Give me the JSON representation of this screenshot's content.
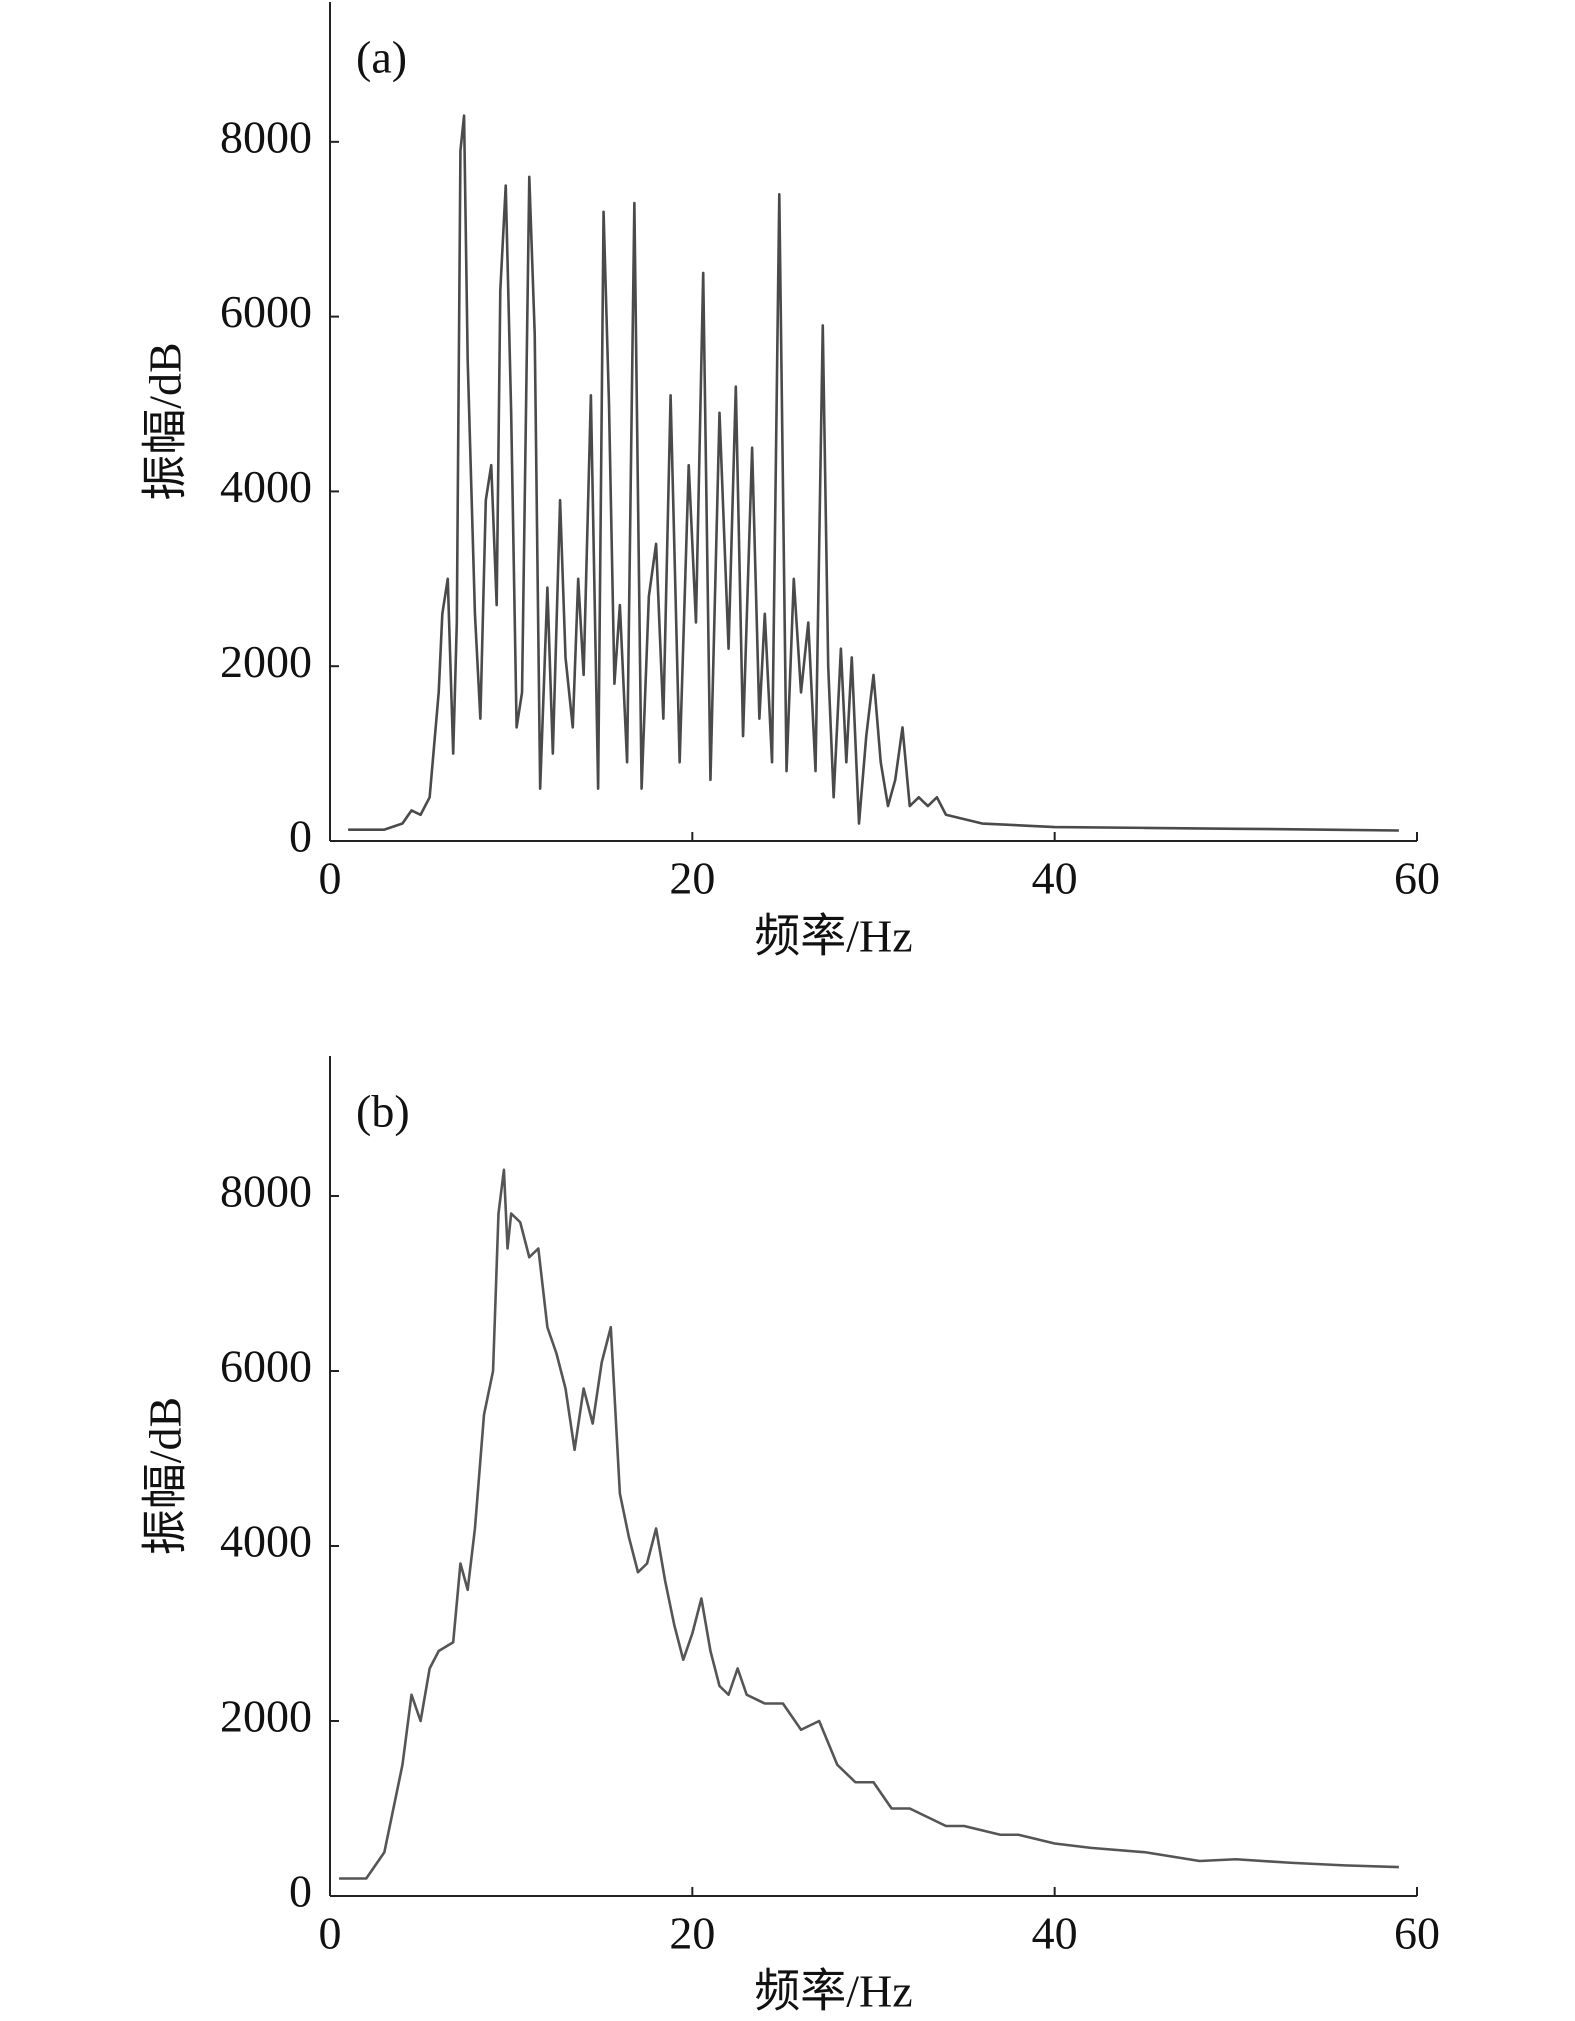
{
  "chart_data": [
    {
      "type": "line",
      "label": "(a)",
      "x_label": "频率/Hz",
      "y_label": "振幅/dB",
      "xlim": [
        0,
        60
      ],
      "ylim": [
        0,
        9600
      ],
      "xticks": [
        0,
        20,
        40,
        60
      ],
      "yticks": [
        0,
        2000,
        4000,
        6000,
        8000
      ],
      "x": [
        1,
        3,
        4,
        4.5,
        5,
        5.5,
        6,
        6.2,
        6.5,
        6.8,
        7,
        7.2,
        7.4,
        7.6,
        8,
        8.3,
        8.6,
        8.9,
        9.2,
        9.4,
        9.7,
        10,
        10.3,
        10.6,
        11,
        11.3,
        11.6,
        12,
        12.3,
        12.7,
        13,
        13.4,
        13.7,
        14,
        14.4,
        14.8,
        15.1,
        15.4,
        15.7,
        16,
        16.4,
        16.8,
        17.2,
        17.6,
        18,
        18.4,
        18.8,
        19.3,
        19.8,
        20.2,
        20.6,
        21,
        21.5,
        22,
        22.4,
        22.8,
        23.3,
        23.7,
        24,
        24.4,
        24.8,
        25.2,
        25.6,
        26,
        26.4,
        26.8,
        27.2,
        27.5,
        27.8,
        28.2,
        28.5,
        28.8,
        29.2,
        29.6,
        30,
        30.4,
        30.8,
        31.2,
        31.6,
        32,
        32.5,
        33,
        33.5,
        34,
        35,
        36,
        38,
        40,
        45,
        50,
        55,
        59
      ],
      "series": [
        {
          "color": "#4a4a4a",
          "values": [
            130,
            130,
            200,
            350,
            300,
            500,
            1700,
            2600,
            3000,
            1000,
            2500,
            7900,
            8300,
            5500,
            2600,
            1400,
            3900,
            4300,
            2700,
            6300,
            7500,
            4900,
            1300,
            1700,
            7600,
            5800,
            600,
            2900,
            1000,
            3900,
            2100,
            1300,
            3000,
            1900,
            5100,
            600,
            7200,
            5000,
            1800,
            2700,
            900,
            7300,
            600,
            2800,
            3400,
            1400,
            5100,
            900,
            4300,
            2500,
            6500,
            700,
            4900,
            2200,
            5200,
            1200,
            4500,
            1400,
            2600,
            900,
            7400,
            800,
            3000,
            1700,
            2500,
            800,
            5900,
            2000,
            500,
            2200,
            900,
            2100,
            200,
            1200,
            1900,
            900,
            400,
            700,
            1300,
            400,
            500,
            400,
            500,
            300,
            250,
            200,
            180,
            160,
            150,
            140,
            130,
            120
          ]
        }
      ]
    },
    {
      "type": "line",
      "label": "(b)",
      "x_label": "频率/Hz",
      "y_label": "振幅/dB",
      "xlim": [
        0,
        60
      ],
      "ylim": [
        0,
        9600
      ],
      "xticks": [
        0,
        20,
        40,
        60
      ],
      "yticks": [
        0,
        2000,
        4000,
        6000,
        8000
      ],
      "x": [
        0.5,
        2,
        3,
        4,
        4.5,
        5,
        5.5,
        6,
        6.8,
        7.2,
        7.6,
        8,
        8.5,
        9,
        9.3,
        9.6,
        9.8,
        10,
        10.5,
        11,
        11.5,
        12,
        12.5,
        13,
        13.5,
        14,
        14.5,
        15,
        15.5,
        16,
        16.5,
        17,
        17.5,
        18,
        18.5,
        19,
        19.5,
        20,
        20.5,
        21,
        21.5,
        22,
        22.5,
        23,
        24,
        25,
        26,
        27,
        28,
        29,
        30,
        31,
        32,
        33,
        34,
        35,
        37,
        38,
        40,
        42,
        45,
        48,
        50,
        53,
        56,
        59
      ],
      "series": [
        {
          "color": "#555555",
          "values": [
            200,
            200,
            500,
            1500,
            2300,
            2000,
            2600,
            2800,
            2900,
            3800,
            3500,
            4200,
            5500,
            6000,
            7800,
            8300,
            7400,
            7800,
            7700,
            7300,
            7400,
            6500,
            6200,
            5800,
            5100,
            5800,
            5400,
            6100,
            6500,
            4600,
            4100,
            3700,
            3800,
            4200,
            3600,
            3100,
            2700,
            3000,
            3400,
            2800,
            2400,
            2300,
            2600,
            2300,
            2200,
            2200,
            1900,
            2000,
            1500,
            1300,
            1300,
            1000,
            1000,
            900,
            800,
            800,
            700,
            700,
            600,
            550,
            500,
            400,
            420,
            380,
            350,
            330
          ]
        }
      ]
    }
  ]
}
